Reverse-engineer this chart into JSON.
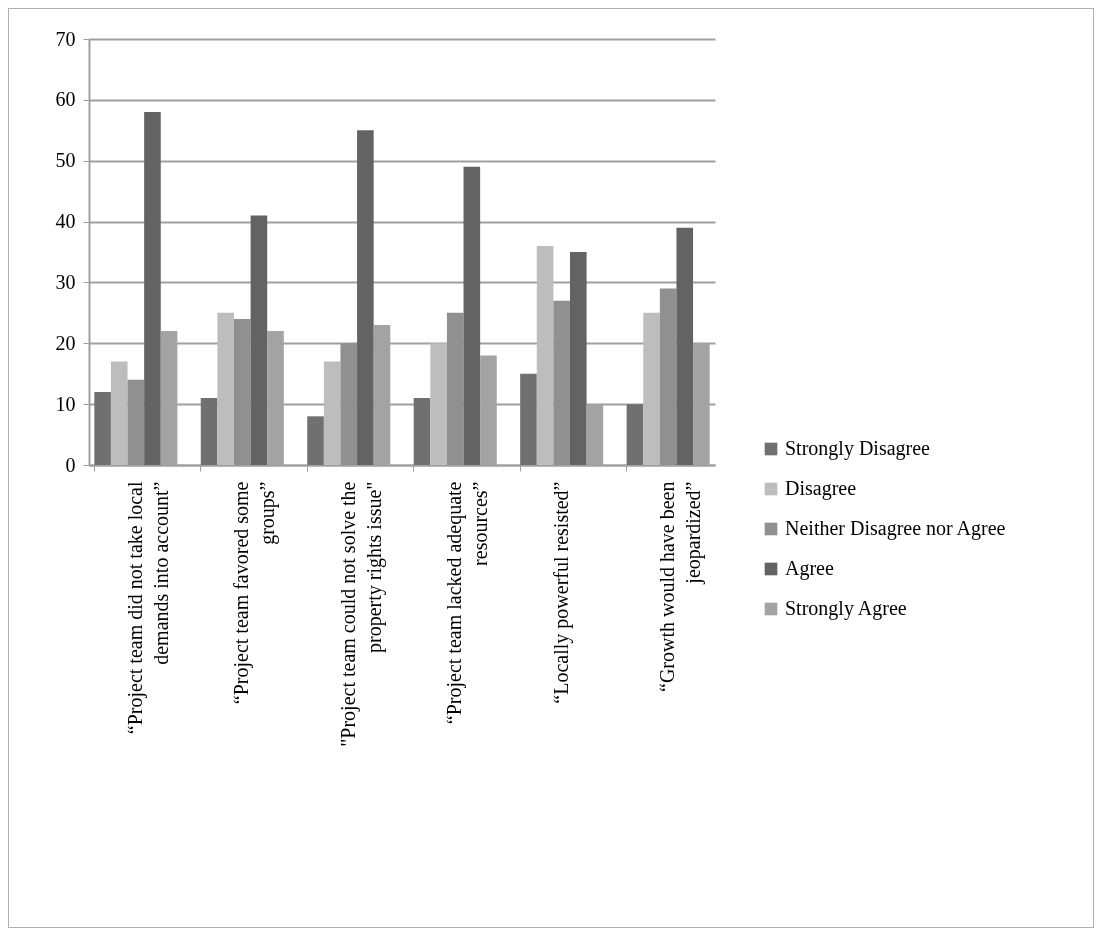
{
  "chart_data": {
    "type": "bar",
    "categories": [
      "“Project team did not take local demands into account”",
      "“Project team favored some groups”",
      "\"Project team could not solve the property rights issue\"",
      "“Project team lacked adequate resources”",
      "“Locally powerful resisted”",
      "“Growth would have been jeopardized”"
    ],
    "series": [
      {
        "name": "Strongly Disagree",
        "color": "#707070",
        "values": [
          12,
          11,
          8,
          11,
          15,
          10
        ]
      },
      {
        "name": "Disagree",
        "color": "#bdbdbd",
        "values": [
          17,
          25,
          17,
          20,
          36,
          25
        ]
      },
      {
        "name": "Neither Disagree nor Agree",
        "color": "#909090",
        "values": [
          14,
          24,
          20,
          25,
          27,
          29
        ]
      },
      {
        "name": "Agree",
        "color": "#636363",
        "values": [
          58,
          41,
          55,
          49,
          35,
          39
        ]
      },
      {
        "name": "Strongly Agree",
        "color": "#a3a3a3",
        "values": [
          22,
          22,
          23,
          18,
          10,
          20
        ]
      }
    ],
    "ylim": [
      0,
      70
    ],
    "yticks": [
      0,
      10,
      20,
      30,
      40,
      50,
      60,
      70
    ],
    "grid": "y",
    "legend": "right"
  }
}
